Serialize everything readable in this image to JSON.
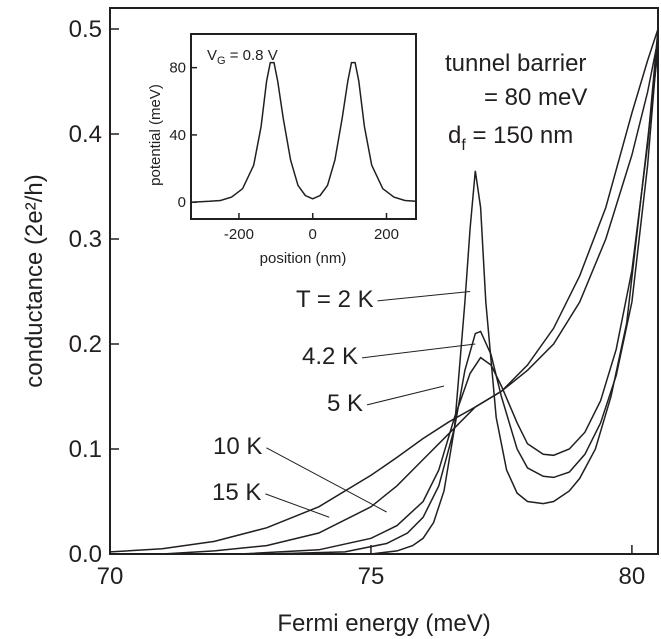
{
  "chart_data": [
    {
      "type": "line",
      "xlabel": "Fermi energy (meV)",
      "ylabel": "conductance (2e²/h)",
      "xlim": [
        70,
        80.5
      ],
      "ylim": [
        0,
        0.52
      ],
      "x_ticks": [
        70,
        75,
        80
      ],
      "y_ticks": [
        0.0,
        0.1,
        0.2,
        0.3,
        0.4,
        0.5
      ],
      "x_tick_labels": [
        "70",
        "75",
        "80"
      ],
      "y_tick_labels": [
        "0.0",
        "0.1",
        "0.2",
        "0.3",
        "0.4",
        "0.5"
      ],
      "grid": false,
      "legend": "none",
      "annotations": {
        "barrier_line1": "tunnel barrier",
        "barrier_line2": "= 80 meV",
        "df_main": "d",
        "df_sub": "f",
        "df_rest": " = 150 nm"
      },
      "series": [
        {
          "name": "T = 2 K",
          "x": [
            73.5,
            75,
            75.5,
            75.8,
            76.0,
            76.2,
            76.4,
            76.6,
            76.8,
            76.9,
            77.0,
            77.1,
            77.2,
            77.4,
            77.6,
            77.8,
            78.0,
            78.3,
            78.5,
            78.8,
            79.0,
            79.3,
            79.6,
            79.9,
            80.2,
            80.5
          ],
          "y": [
            0.0,
            0.0,
            0.003,
            0.008,
            0.015,
            0.03,
            0.06,
            0.12,
            0.24,
            0.31,
            0.365,
            0.33,
            0.24,
            0.13,
            0.08,
            0.058,
            0.05,
            0.048,
            0.05,
            0.06,
            0.072,
            0.1,
            0.15,
            0.22,
            0.35,
            0.48
          ]
        },
        {
          "name": "4.2 K",
          "x": [
            73.0,
            74.5,
            75.3,
            75.7,
            76.0,
            76.3,
            76.6,
            76.8,
            77.0,
            77.1,
            77.3,
            77.5,
            77.8,
            78.0,
            78.3,
            78.5,
            78.8,
            79.1,
            79.4,
            79.7,
            80.0,
            80.3,
            80.5
          ],
          "y": [
            0.0,
            0.002,
            0.01,
            0.02,
            0.035,
            0.065,
            0.12,
            0.175,
            0.21,
            0.212,
            0.19,
            0.15,
            0.1,
            0.082,
            0.074,
            0.073,
            0.078,
            0.095,
            0.125,
            0.17,
            0.24,
            0.37,
            0.49
          ]
        },
        {
          "name": "5 K",
          "x": [
            72.5,
            74.0,
            75.0,
            75.5,
            76.0,
            76.3,
            76.6,
            76.9,
            77.1,
            77.3,
            77.5,
            77.8,
            78.0,
            78.3,
            78.5,
            78.8,
            79.1,
            79.4,
            79.7,
            80.0,
            80.3,
            80.5
          ],
          "y": [
            0.0,
            0.004,
            0.015,
            0.027,
            0.05,
            0.08,
            0.13,
            0.172,
            0.187,
            0.18,
            0.16,
            0.125,
            0.105,
            0.095,
            0.094,
            0.1,
            0.116,
            0.146,
            0.195,
            0.27,
            0.39,
            0.5
          ]
        },
        {
          "name": "10 K",
          "x": [
            71.0,
            72.0,
            73.0,
            74.0,
            75.0,
            75.5,
            76.0,
            76.5,
            77.0,
            77.5,
            78.0,
            78.5,
            79.0,
            79.5,
            80.0,
            80.3,
            80.5
          ],
          "y": [
            0.0,
            0.003,
            0.008,
            0.02,
            0.045,
            0.065,
            0.09,
            0.115,
            0.14,
            0.155,
            0.175,
            0.2,
            0.24,
            0.3,
            0.38,
            0.44,
            0.49
          ]
        },
        {
          "name": "15 K",
          "x": [
            70.0,
            71.0,
            72.0,
            73.0,
            74.0,
            75.0,
            75.5,
            76.0,
            76.5,
            77.0,
            77.5,
            78.0,
            78.5,
            79.0,
            79.5,
            80.0,
            80.3,
            80.5
          ],
          "y": [
            0.002,
            0.005,
            0.012,
            0.025,
            0.045,
            0.075,
            0.092,
            0.11,
            0.126,
            0.14,
            0.155,
            0.18,
            0.215,
            0.265,
            0.33,
            0.42,
            0.47,
            0.5
          ]
        }
      ],
      "curve_labels": [
        {
          "text": "T = 2 K",
          "series": "T = 2 K",
          "at_x": 76.9,
          "at_y": 0.25
        },
        {
          "text": "4.2 K",
          "series": "4.2 K",
          "at_x": 77.0,
          "at_y": 0.2
        },
        {
          "text": "5 K",
          "series": "5 K",
          "at_x": 76.4,
          "at_y": 0.16
        },
        {
          "text": "10 K",
          "series": "10 K",
          "at_x": 75.3,
          "at_y": 0.04
        },
        {
          "text": "15 K",
          "series": "15 K",
          "at_x": 74.2,
          "at_y": 0.035
        }
      ]
    },
    {
      "type": "line",
      "xlabel": "position (nm)",
      "ylabel": "potential (meV)",
      "title_main": "V",
      "title_sub": "G",
      "title_rest": " = 0.8 V",
      "xlim": [
        -330,
        280
      ],
      "ylim": [
        -10,
        100
      ],
      "x_ticks": [
        -200,
        0,
        200
      ],
      "y_ticks": [
        0,
        40,
        80
      ],
      "x_tick_labels": [
        "-200",
        "0",
        "200"
      ],
      "y_tick_labels": [
        "0",
        "40",
        "80"
      ],
      "series": [
        {
          "x": [
            -330,
            -280,
            -250,
            -220,
            -190,
            -160,
            -140,
            -125,
            -115,
            -105,
            -95,
            -80,
            -60,
            -40,
            -20,
            0,
            20,
            40,
            60,
            80,
            95,
            105,
            115,
            125,
            140,
            160,
            190,
            220,
            250,
            280
          ],
          "y": [
            0,
            0.5,
            1,
            3,
            8,
            22,
            45,
            72,
            83,
            83,
            72,
            50,
            25,
            10,
            4,
            2,
            4,
            10,
            25,
            50,
            72,
            83,
            83,
            72,
            45,
            22,
            8,
            3,
            1,
            0.5
          ]
        }
      ]
    }
  ]
}
